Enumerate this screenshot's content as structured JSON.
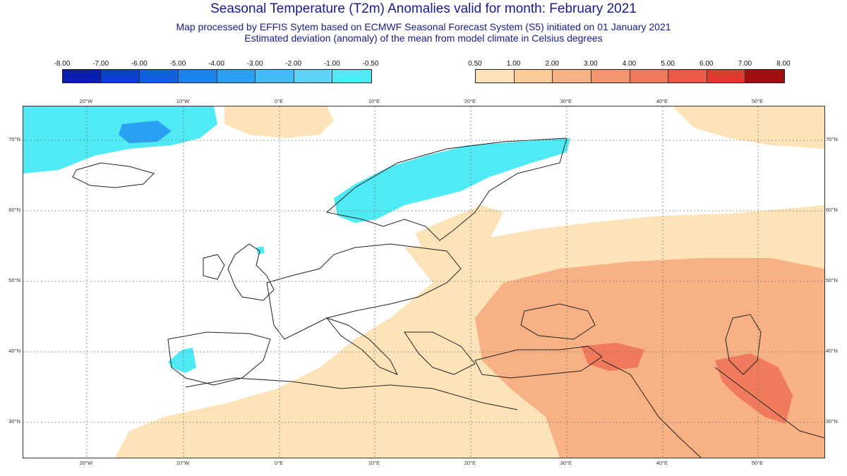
{
  "header": {
    "title": "Seasonal Temperature (T2m) Anomalies valid for month: February 2021",
    "subtitle1": "Map processed by EFFIS Sytem based on ECMWF Seasonal Forecast System (S5) initiated on 01 January 2021",
    "subtitle2": "Estimated deviation (anomaly) of the mean from model climate in Celsius degrees"
  },
  "legend_cold": {
    "labels": [
      "-8.00",
      "-7.00",
      "-6.00",
      "-5.00",
      "-4.00",
      "-3.00",
      "-2.00",
      "-1.00",
      "-0.50"
    ],
    "colors": [
      "#0a1fb0",
      "#0a3fd0",
      "#1060e0",
      "#1b84ec",
      "#2aa0f2",
      "#42bcf6",
      "#5fd2f8",
      "#4feaf4"
    ]
  },
  "legend_warm": {
    "labels": [
      "0.50",
      "1.00",
      "2.00",
      "3.00",
      "4.00",
      "5.00",
      "6.00",
      "7.00",
      "8.00"
    ],
    "colors": [
      "#fde3b8",
      "#fbcc98",
      "#f7b184",
      "#f3956f",
      "#ef7a5c",
      "#ea5a46",
      "#de3a2f",
      "#a10f10"
    ]
  },
  "map": {
    "lon_labels": [
      "20°W",
      "10°W",
      "0°E",
      "10°E",
      "20°E",
      "30°E",
      "40°E",
      "50°E"
    ],
    "lat_labels": [
      "70°N",
      "60°N",
      "50°N",
      "40°N",
      "30°N"
    ],
    "colors": {
      "land_line": "#222222",
      "grid": "#777777",
      "warm1": "#fde3b8",
      "warm2": "#f7b184",
      "warm3": "#ef7a5c",
      "cold1": "#4feaf4",
      "cold2": "#2aa0f2"
    }
  }
}
